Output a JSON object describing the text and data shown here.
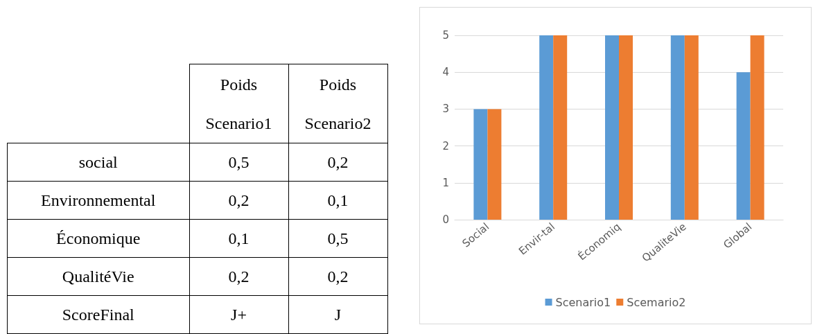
{
  "chart_data": [
    {
      "type": "other",
      "categories": [
        "Poids Scenario1",
        "Poids Scenario2"
      ],
      "y_categories": [
        "social",
        "Environnemental",
        "Économique",
        "QualitéVie",
        "ScoreFinal"
      ],
      "cell_labels": [
        [
          "0,5",
          "0,2"
        ],
        [
          "0,2",
          "0,1"
        ],
        [
          "0,1",
          "0,5"
        ],
        [
          "0,2",
          "0,2"
        ],
        [
          "J+",
          "J"
        ]
      ]
    },
    {
      "type": "bar",
      "categories": [
        "Social",
        "Envir-tal",
        "Économiq",
        "QualiteVie",
        "Global"
      ],
      "series": [
        {
          "name": "Scenario1",
          "color": "#5b9bd5",
          "values": [
            3,
            5,
            5,
            5,
            4
          ]
        },
        {
          "name": "Scemario2",
          "color": "#ed7d31",
          "values": [
            3,
            5,
            5,
            5,
            5
          ]
        }
      ],
      "ylim": [
        0,
        5
      ],
      "yticks": [
        0,
        1,
        2,
        3,
        4,
        5
      ],
      "grid": "y",
      "legend": "bottom"
    }
  ]
}
